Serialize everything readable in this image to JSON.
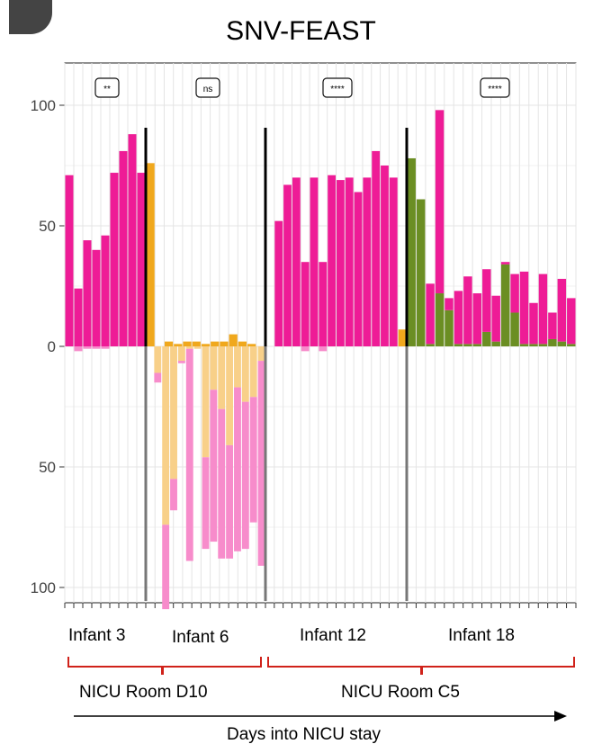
{
  "chart_data": {
    "type": "bar",
    "title": "SNV-FEAST",
    "y_ticks": [
      "100",
      "50",
      "0",
      "50",
      "100"
    ],
    "y_range": [
      -100,
      100
    ],
    "grid": true,
    "annotation_labels": [
      "**",
      "ns",
      "****",
      "****"
    ],
    "colors": {
      "magenta": "#ee1c96",
      "orange": "#f0a81d",
      "olive": "#6b8e23",
      "pink_light": "#f78ccb",
      "peach": "#f8d089",
      "grid": "#e4e4e4"
    },
    "infants": [
      {
        "label": "Infant 3",
        "stat": "**",
        "top_bars": [
          {
            "magenta": 71
          },
          {
            "magenta": 24
          },
          {
            "magenta": 44
          },
          {
            "magenta": 40
          },
          {
            "magenta": 46
          },
          {
            "magenta": 72
          },
          {
            "magenta": 81
          },
          {
            "magenta": 88
          },
          {
            "magenta": 72
          }
        ],
        "bottom_bars": [
          {
            "pink": 0
          },
          {
            "pink": 2
          },
          {
            "pink": 1
          },
          {
            "pink": 1
          },
          {
            "pink": 1
          },
          {
            "pink": 0
          },
          {
            "pink": 0
          },
          {
            "pink": 0
          },
          {
            "pink": 0
          }
        ]
      },
      {
        "label": "Infant 6",
        "stat": "ns",
        "top_bars": [
          {
            "orange": 76
          },
          {
            "orange": 0
          },
          {
            "orange": 2
          },
          {
            "orange": 1
          },
          {
            "orange": 2
          },
          {
            "orange": 2
          },
          {
            "orange": 1
          },
          {
            "orange": 2
          },
          {
            "orange": 2
          },
          {
            "orange": 5
          },
          {
            "orange": 2
          },
          {
            "orange": 1
          },
          {
            "orange": 0
          }
        ],
        "bottom_bars": [
          {
            "peach": 0,
            "pink": 0
          },
          {
            "peach": 11,
            "pink": 4
          },
          {
            "peach": 74,
            "pink": 35
          },
          {
            "peach": 55,
            "pink": 13
          },
          {
            "peach": 6,
            "pink": 1
          },
          {
            "peach": 1,
            "pink": 88
          },
          {
            "peach": 1,
            "pink": 0
          },
          {
            "peach": 46,
            "pink": 38
          },
          {
            "peach": 18,
            "pink": 63
          },
          {
            "peach": 26,
            "pink": 62
          },
          {
            "peach": 41,
            "pink": 47
          },
          {
            "peach": 17,
            "pink": 68
          },
          {
            "peach": 23,
            "pink": 61
          },
          {
            "peach": 21,
            "pink": 52
          },
          {
            "peach": 6,
            "pink": 85
          }
        ]
      },
      {
        "label": "Infant 12",
        "stat": "****",
        "top_bars": [
          {
            "orange": 0
          },
          {
            "magenta": 52
          },
          {
            "magenta": 67
          },
          {
            "magenta": 70
          },
          {
            "magenta": 35
          },
          {
            "magenta": 70
          },
          {
            "magenta": 35
          },
          {
            "magenta": 71
          },
          {
            "magenta": 69
          },
          {
            "magenta": 70
          },
          {
            "magenta": 64
          },
          {
            "magenta": 70
          },
          {
            "magenta": 81
          },
          {
            "magenta": 75
          },
          {
            "magenta": 70
          },
          {
            "orange": 7
          }
        ],
        "bottom_bars": [
          {
            "pink": 0
          },
          {
            "pink": 0
          },
          {
            "pink": 0
          },
          {
            "pink": 0
          },
          {
            "pink": 2
          },
          {
            "pink": 0
          },
          {
            "pink": 2
          },
          {
            "pink": 0
          },
          {
            "pink": 0
          },
          {
            "pink": 0
          },
          {
            "pink": 0
          },
          {
            "pink": 0
          },
          {
            "pink": 0
          },
          {
            "pink": 0
          },
          {
            "pink": 0
          },
          {
            "pink": 0
          }
        ]
      },
      {
        "label": "Infant 18",
        "stat": "****",
        "top_bars": [
          {
            "olive": 78,
            "magenta": 0
          },
          {
            "olive": 61,
            "magenta": 0
          },
          {
            "olive": 1,
            "magenta": 25
          },
          {
            "olive": 22,
            "magenta": 76
          },
          {
            "olive": 15,
            "magenta": 5
          },
          {
            "olive": 1,
            "magenta": 22
          },
          {
            "olive": 1,
            "magenta": 28
          },
          {
            "olive": 1,
            "magenta": 21
          },
          {
            "olive": 6,
            "magenta": 26
          },
          {
            "olive": 2,
            "magenta": 19
          },
          {
            "olive": 34,
            "magenta": 1
          },
          {
            "olive": 14,
            "magenta": 16
          },
          {
            "olive": 1,
            "magenta": 30
          },
          {
            "olive": 1,
            "magenta": 17
          },
          {
            "olive": 1,
            "magenta": 29
          },
          {
            "olive": 3,
            "magenta": 11
          },
          {
            "olive": 2,
            "magenta": 26
          },
          {
            "olive": 1,
            "magenta": 19
          }
        ],
        "bottom_bars": []
      }
    ],
    "infant_labels": [
      "Infant 3",
      "Infant 6",
      "Infant 12",
      "Infant 18"
    ],
    "room_labels": [
      "NICU Room D10",
      "NICU Room C5"
    ],
    "x_axis_label": "Days into NICU stay"
  }
}
